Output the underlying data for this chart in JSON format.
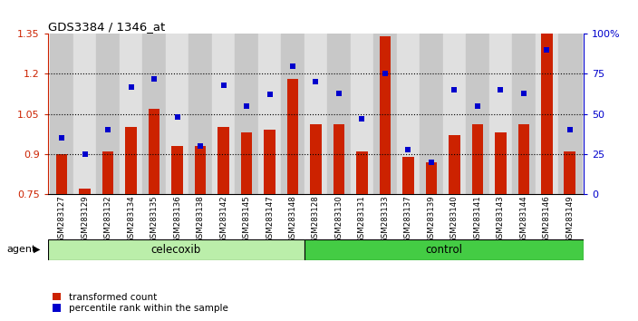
{
  "title": "GDS3384 / 1346_at",
  "samples": [
    "GSM283127",
    "GSM283129",
    "GSM283132",
    "GSM283134",
    "GSM283135",
    "GSM283136",
    "GSM283138",
    "GSM283142",
    "GSM283145",
    "GSM283147",
    "GSM283148",
    "GSM283128",
    "GSM283130",
    "GSM283131",
    "GSM283133",
    "GSM283137",
    "GSM283139",
    "GSM283140",
    "GSM283141",
    "GSM283143",
    "GSM283144",
    "GSM283146",
    "GSM283149"
  ],
  "bar_values": [
    0.9,
    0.77,
    0.91,
    1.0,
    1.07,
    0.93,
    0.93,
    1.0,
    0.98,
    0.99,
    1.18,
    1.01,
    1.01,
    0.91,
    1.34,
    0.89,
    0.87,
    0.97,
    1.01,
    0.98,
    1.01,
    1.35,
    0.91
  ],
  "dot_pct": [
    35,
    25,
    40,
    67,
    72,
    48,
    30,
    68,
    55,
    62,
    80,
    70,
    63,
    47,
    75,
    28,
    20,
    65,
    55,
    65,
    63,
    90,
    40
  ],
  "celecoxib_count": 11,
  "control_count": 12,
  "bar_color": "#cc2200",
  "dot_color": "#0000cc",
  "bar_bottom": 0.75,
  "ylim_left": [
    0.75,
    1.35
  ],
  "yticks_left": [
    0.75,
    0.9,
    1.05,
    1.2,
    1.35
  ],
  "ytick_labels_left": [
    "0.75",
    "0.9",
    "1.05",
    "1.2",
    "1.35"
  ],
  "yticks_right": [
    0,
    25,
    50,
    75,
    100
  ],
  "ytick_labels_right": [
    "0",
    "25",
    "50",
    "75",
    "100%"
  ],
  "grid_values": [
    0.9,
    1.05,
    1.2
  ],
  "celecoxib_label": "celecoxib",
  "control_label": "control",
  "agent_label": "agent",
  "legend_bar": "transformed count",
  "legend_dot": "percentile rank within the sample",
  "bg_color": "#ffffff",
  "plot_bg": "#ffffff",
  "strip_color_light": "#aaddaa",
  "strip_color_dark": "#44cc44",
  "axis_color_left": "#cc2200",
  "axis_color_right": "#0000cc"
}
